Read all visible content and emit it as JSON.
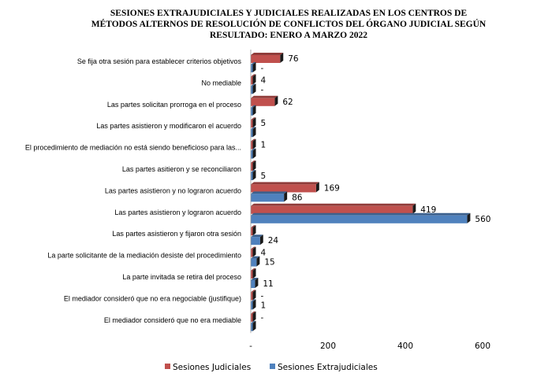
{
  "chart_data": {
    "type": "bar",
    "orientation": "horizontal",
    "style": "3d",
    "title": [
      "SESIONES EXTRAJUDICIALES  Y JUDICIALES  REALIZADAS  EN LOS CENTROS DE",
      "MÉTODOS ALTERNOS DE RESOLUCIÓN DE CONFLICTOS DEL ÓRGANO JUDICIAL  SEGÚN",
      "RESULTADO: ENERO A MARZO  2022"
    ],
    "categories": [
      "Se fija otra sesión para establecer criterios objetivos",
      "No mediable",
      "Las partes solicitan prorroga en el proceso",
      "Las partes asistieron y modificaron el acuerdo",
      "El procedimiento de mediación no está siendo beneficioso para las...",
      "Las partes asitieron y se reconciliaron",
      "Las partes asistieron y no lograron acuerdo",
      "Las partes asistieron y lograron acuerdo",
      "Las partes asistieron y fijaron otra sesión",
      "La parte solicitante de la mediación desiste del procedimiento",
      "La parte invitada se retira del proceso",
      "El mediador consideró que no era negociable (justifique)",
      "El mediador consideró que no era mediable"
    ],
    "series": [
      {
        "name": "Sesiones Judiciales",
        "color": "#c0504d",
        "values": [
          76,
          4,
          62,
          5,
          1,
          0,
          169,
          419,
          0,
          4,
          0,
          0,
          0
        ],
        "labels": [
          "76",
          "4",
          "62",
          "5",
          "1",
          "",
          "169",
          "419",
          "",
          "4",
          "",
          "-",
          "-"
        ]
      },
      {
        "name": "Sesiones Extrajudiciales",
        "color": "#4f81bd",
        "values": [
          0,
          0,
          0,
          0,
          0,
          5,
          86,
          560,
          24,
          15,
          11,
          1,
          0
        ],
        "labels": [
          "-",
          "-",
          "",
          "",
          "",
          "5",
          "86",
          "560",
          "24",
          "15",
          "11",
          "1",
          ""
        ]
      }
    ],
    "x_ticks": [
      "-",
      "200",
      "400",
      "600"
    ],
    "xlim": [
      0,
      600
    ],
    "grid": false,
    "legend_position": "bottom"
  }
}
